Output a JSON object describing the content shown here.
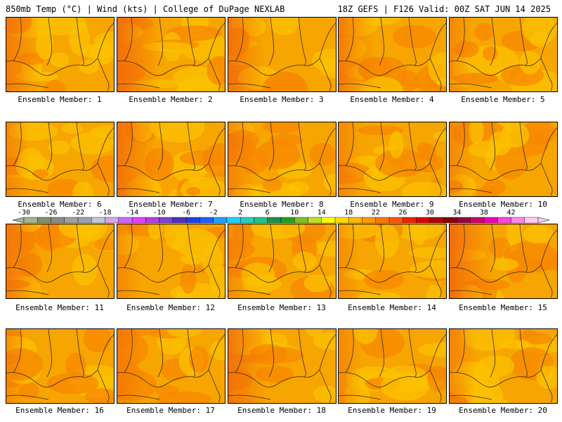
{
  "header": {
    "left": "850mb Temp (°C) | Wind (kts) | College of DuPage NEXLAB",
    "right": "18Z GEFS | F126 Valid: 00Z SAT JUN 14 2025"
  },
  "members": [
    {
      "label": "Ensemble Member: 1",
      "west_warmth": 0.6
    },
    {
      "label": "Ensemble Member: 2",
      "west_warmth": 0.9
    },
    {
      "label": "Ensemble Member: 3",
      "west_warmth": 0.7
    },
    {
      "label": "Ensemble Member: 4",
      "west_warmth": 0.7
    },
    {
      "label": "Ensemble Member: 5",
      "west_warmth": 0.3
    },
    {
      "label": "Ensemble Member: 6",
      "west_warmth": 0.3
    },
    {
      "label": "Ensemble Member: 7",
      "west_warmth": 0.8
    },
    {
      "label": "Ensemble Member: 8",
      "west_warmth": 0.4
    },
    {
      "label": "Ensemble Member: 9",
      "west_warmth": 0.3
    },
    {
      "label": "Ensemble Member: 10",
      "west_warmth": 0.3
    },
    {
      "label": "Ensemble Member: 11",
      "west_warmth": 0.7
    },
    {
      "label": "Ensemble Member: 12",
      "west_warmth": 0.3
    },
    {
      "label": "Ensemble Member: 13",
      "west_warmth": 0.2
    },
    {
      "label": "Ensemble Member: 14",
      "west_warmth": 0.2
    },
    {
      "label": "Ensemble Member: 15",
      "west_warmth": 0.9
    },
    {
      "label": "Ensemble Member: 16",
      "west_warmth": 0.2
    },
    {
      "label": "Ensemble Member: 17",
      "west_warmth": 0.3
    },
    {
      "label": "Ensemble Member: 18",
      "west_warmth": 0.8
    },
    {
      "label": "Ensemble Member: 19",
      "west_warmth": 0.3
    },
    {
      "label": "Ensemble Member: 20",
      "west_warmth": 0.4
    }
  ],
  "colorbar": {
    "labels": [
      "-30",
      "-26",
      "-22",
      "-18",
      "-14",
      "-10",
      "-6",
      "-2",
      "2",
      "6",
      "10",
      "14",
      "18",
      "22",
      "26",
      "30",
      "34",
      "38",
      "42"
    ],
    "colors": [
      "#a2b58f",
      "#7d9070",
      "#8a8a8a",
      "#a0a0a0",
      "#9aa2b5",
      "#c0c8e0",
      "#d6a6e8",
      "#cc66ff",
      "#e040ff",
      "#b040e0",
      "#8040d0",
      "#5030c0",
      "#2040e0",
      "#2060ff",
      "#20a0ff",
      "#20d0ff",
      "#20d0c0",
      "#20c090",
      "#209040",
      "#20a020",
      "#80c020",
      "#c0e020",
      "#ffff00",
      "#ffdd00",
      "#ffbb00",
      "#ff9900",
      "#ff7700",
      "#ff5500",
      "#ee2200",
      "#dd0000",
      "#aa0000",
      "#880000",
      "#990044",
      "#cc0066",
      "#ee00aa",
      "#ff44dd",
      "#ff88ee",
      "#ffccf6"
    ]
  },
  "palette": {
    "base": "#f7a500",
    "warm": "#f78800",
    "hot": "#f26a0a",
    "cool": "#fbc200",
    "coast": "#3a2a10"
  }
}
